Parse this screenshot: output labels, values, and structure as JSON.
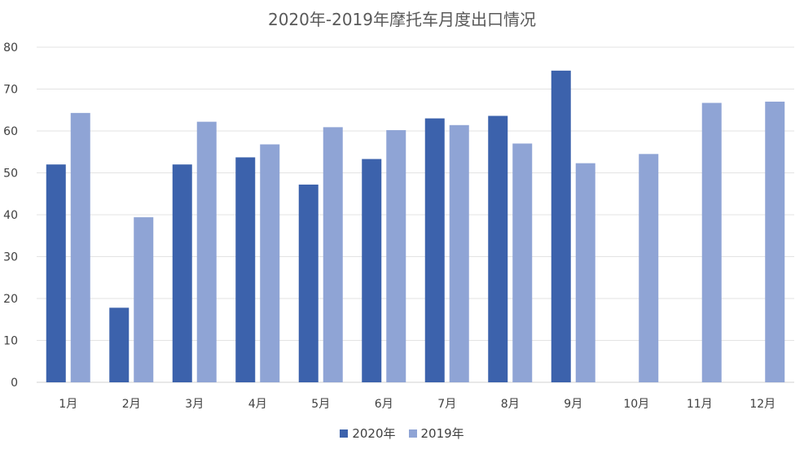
{
  "chart_data": {
    "type": "bar",
    "title": "2020年-2019年摩托车月度出口情况",
    "categories": [
      "1月",
      "2月",
      "3月",
      "4月",
      "5月",
      "6月",
      "7月",
      "8月",
      "9月",
      "10月",
      "11月",
      "12月"
    ],
    "series": [
      {
        "name": "2020年",
        "color": "#3c62ac",
        "values": [
          52,
          17.8,
          52,
          53.7,
          47.2,
          53.3,
          63,
          63.6,
          74.4,
          null,
          null,
          null
        ]
      },
      {
        "name": "2019年",
        "color": "#8fa4d5",
        "values": [
          64.3,
          39.4,
          62.2,
          56.8,
          60.9,
          60.2,
          61.4,
          57,
          52.3,
          54.5,
          66.7,
          67
        ]
      }
    ],
    "ylim": [
      0,
      80
    ],
    "yticks": [
      "0",
      "10",
      "20",
      "30",
      "40",
      "50",
      "60",
      "70",
      "80"
    ],
    "grid": true,
    "legend": "bottom-center"
  }
}
